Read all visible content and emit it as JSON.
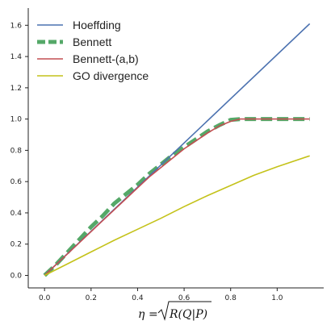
{
  "chart_data": {
    "type": "line",
    "xlabel": "η = √R(Q|P)",
    "xlabel_parts": {
      "lhs": "η",
      "eq": "=",
      "radicand": "R(Q|P)"
    },
    "xlim": [
      -0.07,
      1.2
    ],
    "ylim": [
      -0.08,
      1.71
    ],
    "xticks": [
      "0.0",
      "0.2",
      "0.4",
      "0.6",
      "0.8",
      "1.0"
    ],
    "xtick_values": [
      0.0,
      0.2,
      0.4,
      0.6,
      0.8,
      1.0
    ],
    "yticks": [
      "0.0",
      "0.2",
      "0.4",
      "0.6",
      "0.8",
      "1.0",
      "1.2",
      "1.4",
      "1.6"
    ],
    "ytick_values": [
      0.0,
      0.2,
      0.4,
      0.6,
      0.8,
      1.0,
      1.2,
      1.4,
      1.6
    ],
    "grid": false,
    "legend_position": "top-left",
    "series": [
      {
        "name": "Hoeffding",
        "color": "#4c72b0",
        "style": "solid",
        "x": [
          0.0,
          1.14
        ],
        "y": [
          0.0,
          1.61
        ]
      },
      {
        "name": "Bennett",
        "color": "#55a868",
        "style": "dashed-thick",
        "x": [
          0.0,
          0.05,
          0.1,
          0.15,
          0.2,
          0.25,
          0.3,
          0.35,
          0.4,
          0.45,
          0.5,
          0.55,
          0.6,
          0.65,
          0.7,
          0.75,
          0.8,
          0.85,
          0.9,
          1.0,
          1.14
        ],
        "y": [
          0.0,
          0.07,
          0.15,
          0.23,
          0.31,
          0.38,
          0.46,
          0.52,
          0.58,
          0.65,
          0.71,
          0.77,
          0.82,
          0.87,
          0.92,
          0.96,
          0.995,
          1.0,
          1.0,
          1.0,
          1.0
        ]
      },
      {
        "name": "Bennett-(a,b)",
        "color": "#c44e52",
        "style": "solid",
        "x": [
          0.0,
          0.05,
          0.1,
          0.15,
          0.2,
          0.25,
          0.3,
          0.35,
          0.4,
          0.45,
          0.5,
          0.55,
          0.6,
          0.65,
          0.7,
          0.75,
          0.8,
          0.84,
          0.9,
          1.0,
          1.14
        ],
        "y": [
          0.0,
          0.07,
          0.14,
          0.21,
          0.28,
          0.35,
          0.42,
          0.49,
          0.56,
          0.63,
          0.69,
          0.75,
          0.81,
          0.86,
          0.91,
          0.955,
          0.985,
          1.0,
          1.0,
          1.0,
          1.0
        ]
      },
      {
        "name": "GO divergence",
        "color": "#c4c21a",
        "style": "solid",
        "x": [
          0.0,
          0.1,
          0.2,
          0.3,
          0.4,
          0.5,
          0.6,
          0.7,
          0.8,
          0.9,
          1.0,
          1.14
        ],
        "y": [
          0.0,
          0.075,
          0.15,
          0.225,
          0.295,
          0.365,
          0.44,
          0.51,
          0.575,
          0.64,
          0.695,
          0.765
        ]
      }
    ]
  }
}
